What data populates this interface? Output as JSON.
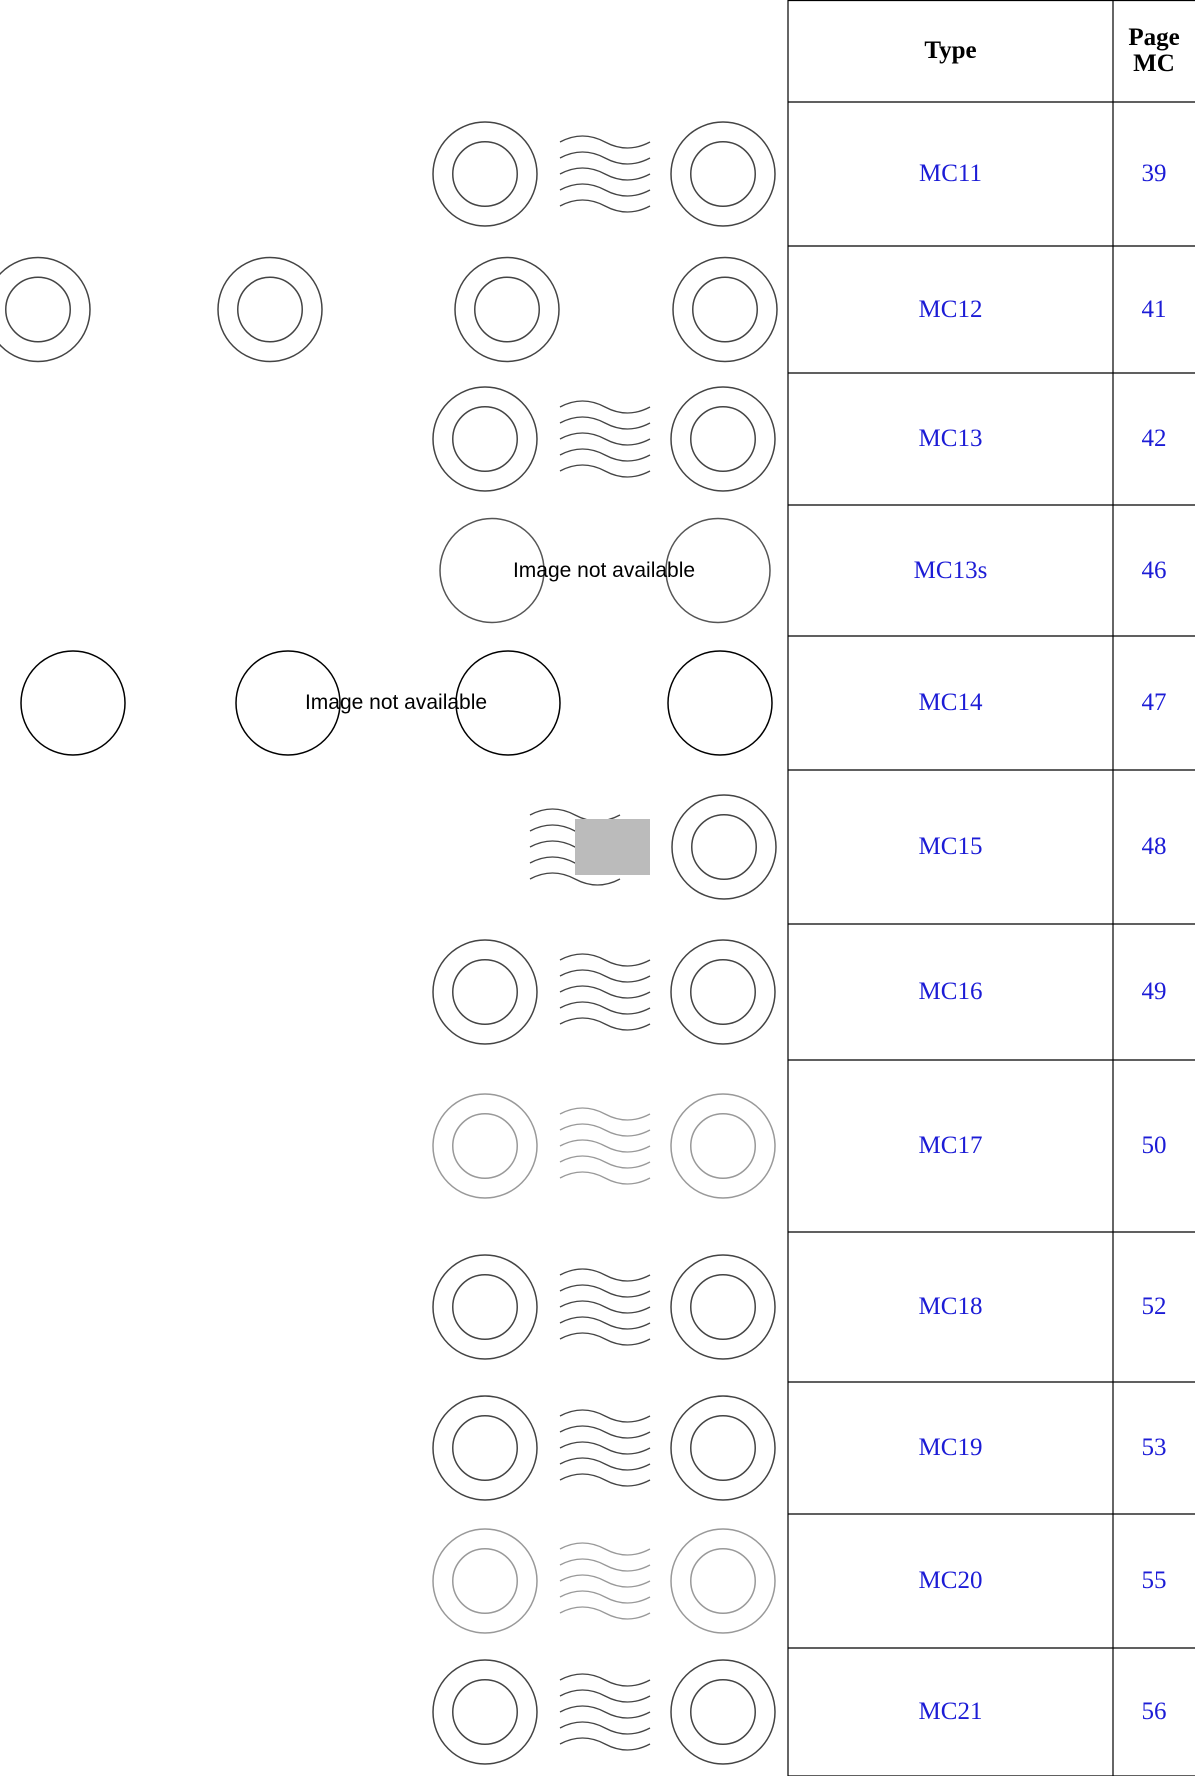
{
  "table": {
    "header": {
      "type": "Type",
      "page": "Page MC"
    },
    "rows": [
      {
        "type": "MC11",
        "page": "39"
      },
      {
        "type": "MC12",
        "page": "41"
      },
      {
        "type": "MC13",
        "page": "42"
      },
      {
        "type": "MC13s",
        "page": "46",
        "image_note": "Image not available"
      },
      {
        "type": "MC14",
        "page": "47",
        "image_note": "Image not available"
      },
      {
        "type": "MC15",
        "page": "48"
      },
      {
        "type": "MC16",
        "page": "49"
      },
      {
        "type": "MC17",
        "page": "50"
      },
      {
        "type": "MC18",
        "page": "52"
      },
      {
        "type": "MC19",
        "page": "53"
      },
      {
        "type": "MC20",
        "page": "55"
      },
      {
        "type": "MC21",
        "page": "56"
      }
    ]
  }
}
